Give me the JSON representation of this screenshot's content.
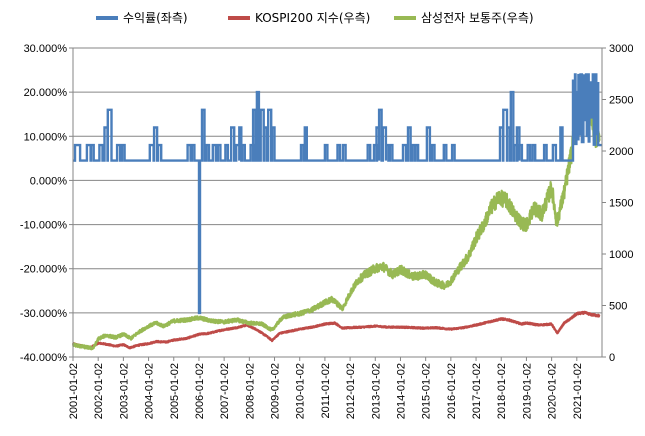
{
  "chart_data": {
    "type": "line",
    "title": "",
    "legend": [
      {
        "name": "수익률(좌측)",
        "color": "#4a7ebb",
        "axis": "left"
      },
      {
        "name": "KOSPI200 지수(우측)",
        "color": "#be4b48",
        "axis": "right"
      },
      {
        "name": "삼성전자 보통주(우측)",
        "color": "#98b954",
        "axis": "right"
      }
    ],
    "legend_position": "top",
    "y_left": {
      "ylim": [
        -40,
        30
      ],
      "ticks": [
        30,
        20,
        10,
        0,
        -10,
        -20,
        -30,
        -40
      ],
      "tick_labels": [
        "30.000%",
        "20.000%",
        "10.000%",
        "0.000%",
        "-10.000%",
        "-20.000%",
        "-30.000%",
        "-40.000%"
      ]
    },
    "y_right": {
      "ylim": [
        0,
        3000
      ],
      "ticks": [
        3000,
        2500,
        2000,
        1500,
        1000,
        500,
        0
      ],
      "tick_labels": [
        "3000",
        "2500",
        "2000",
        "1500",
        "1000",
        "500",
        "0"
      ]
    },
    "x": {
      "xlim": [
        2001.0,
        2022.0
      ],
      "ticks": [
        2001,
        2002,
        2003,
        2004,
        2005,
        2006,
        2007,
        2008,
        2009,
        2010,
        2011,
        2012,
        2013,
        2014,
        2015,
        2016,
        2017,
        2018,
        2019,
        2020,
        2021
      ],
      "tick_labels": [
        "2001-01-02",
        "2002-01-02",
        "2003-01-02",
        "2004-01-02",
        "2005-01-02",
        "2006-01-02",
        "2007-01-02",
        "2008-01-02",
        "2009-01-02",
        "2010-01-02",
        "2011-01-02",
        "2012-01-02",
        "2013-01-02",
        "2014-01-02",
        "2015-01-02",
        "2016-01-02",
        "2017-01-02",
        "2018-01-02",
        "2019-01-02",
        "2020-01-02",
        "2021-01-02"
      ]
    },
    "series": [
      {
        "name": "수익률(좌측)",
        "axis": "left",
        "baseline": 4.5,
        "spikes": [
          {
            "x": 2001.08,
            "w": 0.2,
            "y": 8.0
          },
          {
            "x": 2001.55,
            "w": 0.15,
            "y": 8.0
          },
          {
            "x": 2001.72,
            "w": 0.1,
            "y": 8.0
          },
          {
            "x": 2002.05,
            "w": 0.12,
            "y": 8.0
          },
          {
            "x": 2002.25,
            "w": 0.12,
            "y": 12.0
          },
          {
            "x": 2002.38,
            "w": 0.15,
            "y": 16.0
          },
          {
            "x": 2002.75,
            "w": 0.12,
            "y": 8.0
          },
          {
            "x": 2002.95,
            "w": 0.1,
            "y": 8.0
          },
          {
            "x": 2004.05,
            "w": 0.15,
            "y": 8.0
          },
          {
            "x": 2004.22,
            "w": 0.12,
            "y": 12.0
          },
          {
            "x": 2004.38,
            "w": 0.12,
            "y": 8.0
          },
          {
            "x": 2005.55,
            "w": 0.12,
            "y": 8.0
          },
          {
            "x": 2005.72,
            "w": 0.1,
            "y": 8.0
          },
          {
            "x": 2006.0,
            "w": 0.04,
            "y": -30.0
          },
          {
            "x": 2006.12,
            "w": 0.1,
            "y": 16.0
          },
          {
            "x": 2006.3,
            "w": 0.1,
            "y": 8.0
          },
          {
            "x": 2006.55,
            "w": 0.12,
            "y": 8.0
          },
          {
            "x": 2006.75,
            "w": 0.1,
            "y": 8.0
          },
          {
            "x": 2007.05,
            "w": 0.1,
            "y": 8.0
          },
          {
            "x": 2007.28,
            "w": 0.12,
            "y": 12.0
          },
          {
            "x": 2007.48,
            "w": 0.12,
            "y": 8.0
          },
          {
            "x": 2007.6,
            "w": 0.08,
            "y": 12.0
          },
          {
            "x": 2007.72,
            "w": 0.1,
            "y": 8.0
          },
          {
            "x": 2008.05,
            "w": 0.12,
            "y": 8.0
          },
          {
            "x": 2008.15,
            "w": 0.1,
            "y": 16.0
          },
          {
            "x": 2008.3,
            "w": 0.08,
            "y": 20.0
          },
          {
            "x": 2008.45,
            "w": 0.12,
            "y": 16.0
          },
          {
            "x": 2008.6,
            "w": 0.1,
            "y": 12.0
          },
          {
            "x": 2008.75,
            "w": 0.12,
            "y": 16.0
          },
          {
            "x": 2008.9,
            "w": 0.1,
            "y": 12.0
          },
          {
            "x": 2010.05,
            "w": 0.1,
            "y": 8.0
          },
          {
            "x": 2010.2,
            "w": 0.08,
            "y": 12.0
          },
          {
            "x": 2011.0,
            "w": 0.1,
            "y": 8.0
          },
          {
            "x": 2011.5,
            "w": 0.1,
            "y": 8.0
          },
          {
            "x": 2011.72,
            "w": 0.1,
            "y": 8.0
          },
          {
            "x": 2012.7,
            "w": 0.1,
            "y": 8.0
          },
          {
            "x": 2012.95,
            "w": 0.12,
            "y": 8.0
          },
          {
            "x": 2013.05,
            "w": 0.1,
            "y": 12.0
          },
          {
            "x": 2013.15,
            "w": 0.1,
            "y": 16.0
          },
          {
            "x": 2013.3,
            "w": 0.12,
            "y": 12.0
          },
          {
            "x": 2013.42,
            "w": 0.1,
            "y": 8.0
          },
          {
            "x": 2013.58,
            "w": 0.1,
            "y": 8.0
          },
          {
            "x": 2014.1,
            "w": 0.12,
            "y": 8.0
          },
          {
            "x": 2014.3,
            "w": 0.1,
            "y": 12.0
          },
          {
            "x": 2014.45,
            "w": 0.1,
            "y": 8.0
          },
          {
            "x": 2014.6,
            "w": 0.1,
            "y": 8.0
          },
          {
            "x": 2015.05,
            "w": 0.12,
            "y": 12.0
          },
          {
            "x": 2015.25,
            "w": 0.1,
            "y": 8.0
          },
          {
            "x": 2015.72,
            "w": 0.1,
            "y": 8.0
          },
          {
            "x": 2016.05,
            "w": 0.1,
            "y": 8.0
          },
          {
            "x": 2017.95,
            "w": 0.12,
            "y": 12.0
          },
          {
            "x": 2018.08,
            "w": 0.15,
            "y": 16.0
          },
          {
            "x": 2018.25,
            "w": 0.1,
            "y": 12.0
          },
          {
            "x": 2018.38,
            "w": 0.1,
            "y": 20.0
          },
          {
            "x": 2018.52,
            "w": 0.12,
            "y": 8.0
          },
          {
            "x": 2018.62,
            "w": 0.1,
            "y": 12.0
          },
          {
            "x": 2018.72,
            "w": 0.1,
            "y": 8.0
          },
          {
            "x": 2019.05,
            "w": 0.1,
            "y": 8.0
          },
          {
            "x": 2019.25,
            "w": 0.1,
            "y": 8.0
          },
          {
            "x": 2019.7,
            "w": 0.1,
            "y": 8.0
          },
          {
            "x": 2020.05,
            "w": 0.12,
            "y": 8.0
          },
          {
            "x": 2020.35,
            "w": 0.08,
            "y": 12.0
          }
        ],
        "high_block": {
          "start": 2020.85,
          "end": 2021.85,
          "high": 24.0,
          "low": 8.0
        }
      },
      {
        "name": "KOSPI200 지수(우측)",
        "axis": "right",
        "x": [
          2001.0,
          2001.3,
          2001.7,
          2002.0,
          2002.3,
          2002.7,
          2003.0,
          2003.25,
          2003.6,
          2004.0,
          2004.3,
          2004.7,
          2005.0,
          2005.5,
          2006.0,
          2006.4,
          2006.8,
          2007.0,
          2007.5,
          2007.9,
          2008.3,
          2008.7,
          2008.9,
          2009.2,
          2009.6,
          2010.0,
          2010.5,
          2011.0,
          2011.4,
          2011.7,
          2012.0,
          2012.5,
          2013.0,
          2013.5,
          2014.0,
          2014.5,
          2015.0,
          2015.4,
          2015.8,
          2016.0,
          2016.5,
          2017.0,
          2017.5,
          2018.0,
          2018.3,
          2018.8,
          2019.0,
          2019.5,
          2020.0,
          2020.22,
          2020.5,
          2020.8,
          2021.0,
          2021.3,
          2021.6,
          2021.9
        ],
        "values": [
          130,
          110,
          90,
          135,
          125,
          105,
          120,
          90,
          115,
          130,
          150,
          145,
          165,
          180,
          220,
          230,
          255,
          265,
          285,
          310,
          265,
          200,
          160,
          230,
          250,
          270,
          290,
          320,
          330,
          280,
          285,
          290,
          300,
          290,
          290,
          285,
          280,
          285,
          275,
          270,
          285,
          310,
          340,
          370,
          360,
          320,
          330,
          310,
          320,
          230,
          330,
          380,
          420,
          430,
          410,
          400
        ]
      },
      {
        "name": "삼성전자 보통주(우측)",
        "axis": "right",
        "x": [
          2001.0,
          2001.4,
          2001.8,
          2002.0,
          2002.3,
          2002.7,
          2003.0,
          2003.3,
          2003.6,
          2004.0,
          2004.3,
          2004.6,
          2005.0,
          2005.5,
          2006.0,
          2006.5,
          2007.0,
          2007.5,
          2008.0,
          2008.5,
          2008.9,
          2009.3,
          2009.7,
          2010.0,
          2010.5,
          2011.0,
          2011.3,
          2011.7,
          2012.0,
          2012.3,
          2012.6,
          2013.0,
          2013.3,
          2013.7,
          2014.0,
          2014.5,
          2015.0,
          2015.4,
          2015.8,
          2016.0,
          2016.3,
          2016.7,
          2017.0,
          2017.3,
          2017.6,
          2017.9,
          2018.2,
          2018.5,
          2018.8,
          2019.0,
          2019.3,
          2019.6,
          2020.0,
          2020.2,
          2020.5,
          2020.8,
          2021.0,
          2021.1,
          2021.3,
          2021.5,
          2021.7,
          2021.9
        ],
        "values": [
          120,
          100,
          85,
          175,
          210,
          190,
          220,
          180,
          240,
          300,
          330,
          300,
          350,
          360,
          380,
          350,
          340,
          360,
          330,
          320,
          260,
          380,
          410,
          420,
          460,
          530,
          560,
          470,
          620,
          740,
          800,
          860,
          880,
          800,
          850,
          780,
          800,
          720,
          690,
          740,
          850,
          980,
          1150,
          1280,
          1450,
          1550,
          1520,
          1400,
          1300,
          1280,
          1450,
          1380,
          1650,
          1300,
          1600,
          2000,
          2400,
          2620,
          2500,
          2450,
          2150,
          2100
        ]
      }
    ]
  }
}
